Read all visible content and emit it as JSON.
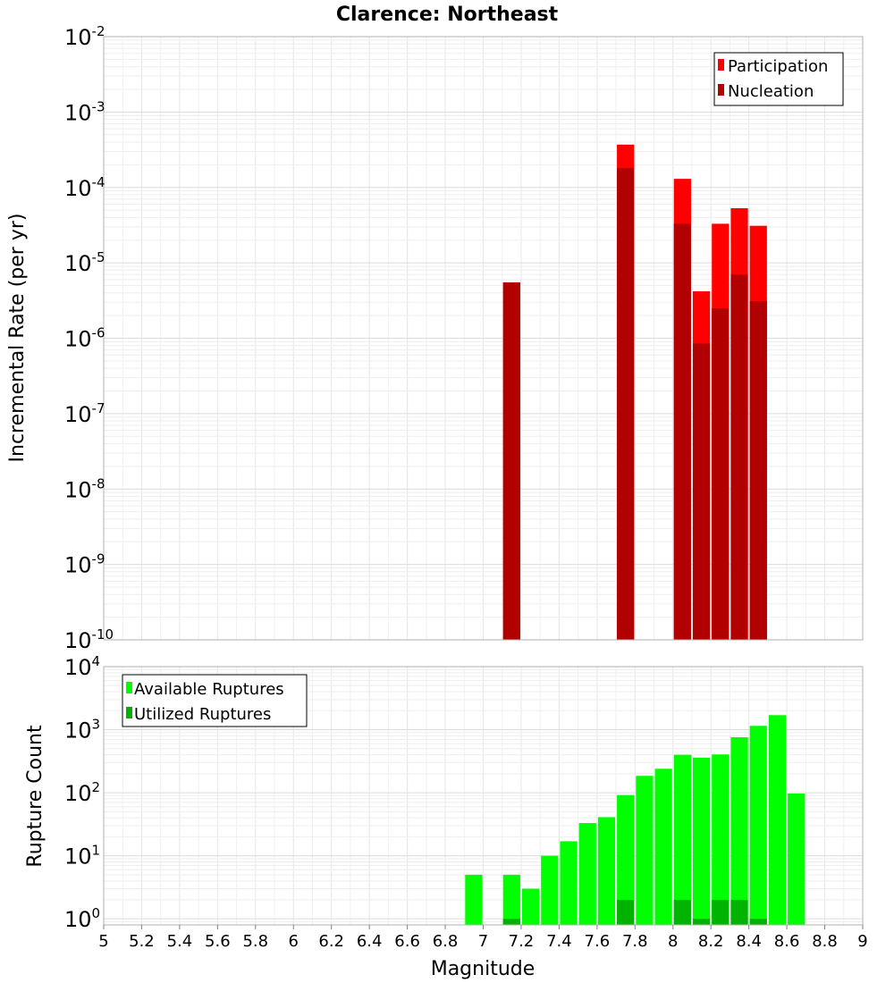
{
  "chart_data": [
    {
      "type": "bar",
      "title": "Clarence: Northeast",
      "xlabel": "",
      "ylabel": "Incremental Rate (per yr)",
      "yscale": "log",
      "ylim": [
        1e-10,
        0.01
      ],
      "xlim": [
        5,
        9
      ],
      "bar_width": 0.1,
      "grid": true,
      "legend_position": "top-right",
      "y_ticks": [
        {
          "base": "10",
          "exp": "-10"
        },
        {
          "base": "10",
          "exp": "-9"
        },
        {
          "base": "10",
          "exp": "-8"
        },
        {
          "base": "10",
          "exp": "-7"
        },
        {
          "base": "10",
          "exp": "-6"
        },
        {
          "base": "10",
          "exp": "-5"
        },
        {
          "base": "10",
          "exp": "-4"
        },
        {
          "base": "10",
          "exp": "-3"
        },
        {
          "base": "10",
          "exp": "-2"
        }
      ],
      "series": [
        {
          "name": "Participation",
          "color": "#ff0000",
          "x": [
            7.15,
            7.75,
            8.05,
            8.15,
            8.25,
            8.35,
            8.45
          ],
          "values": [
            5.5e-06,
            0.00037,
            0.00013,
            4.2e-06,
            3.3e-05,
            5.3e-05,
            3.1e-05
          ]
        },
        {
          "name": "Nucleation",
          "color": "#b20000",
          "x": [
            7.15,
            7.75,
            8.05,
            8.15,
            8.25,
            8.35,
            8.45
          ],
          "values": [
            5.5e-06,
            0.00018,
            3.3e-05,
            8.5e-07,
            2.5e-06,
            7e-06,
            3.1e-06
          ]
        }
      ]
    },
    {
      "type": "bar",
      "title": "",
      "xlabel": "Magnitude",
      "ylabel": "Rupture Count",
      "yscale": "log",
      "ylim": [
        0.8,
        10000
      ],
      "xlim": [
        5,
        9
      ],
      "bar_width": 0.1,
      "grid": true,
      "legend_position": "top-left",
      "x_ticks": [
        "5",
        "5.2",
        "5.4",
        "5.6",
        "5.8",
        "6",
        "6.2",
        "6.4",
        "6.6",
        "6.8",
        "7",
        "7.2",
        "7.4",
        "7.6",
        "7.8",
        "8",
        "8.2",
        "8.4",
        "8.6",
        "8.8",
        "9"
      ],
      "y_ticks": [
        {
          "base": "10",
          "exp": "0"
        },
        {
          "base": "10",
          "exp": "1"
        },
        {
          "base": "10",
          "exp": "2"
        },
        {
          "base": "10",
          "exp": "3"
        },
        {
          "base": "10",
          "exp": "4"
        }
      ],
      "series": [
        {
          "name": "Available Ruptures",
          "color": "#00ff00",
          "x": [
            6.95,
            7.15,
            7.25,
            7.35,
            7.45,
            7.55,
            7.65,
            7.75,
            7.85,
            7.95,
            8.05,
            8.15,
            8.25,
            8.35,
            8.45,
            8.55,
            8.65
          ],
          "values": [
            5,
            5,
            3,
            10,
            17,
            33,
            41,
            92,
            185,
            240,
            400,
            360,
            405,
            760,
            1150,
            1700,
            97
          ]
        },
        {
          "name": "Utilized Ruptures",
          "color": "#00b300",
          "x": [
            7.15,
            7.75,
            8.05,
            8.15,
            8.25,
            8.35,
            8.45
          ],
          "values": [
            1,
            2,
            2,
            1,
            2,
            2,
            1
          ]
        }
      ]
    }
  ]
}
